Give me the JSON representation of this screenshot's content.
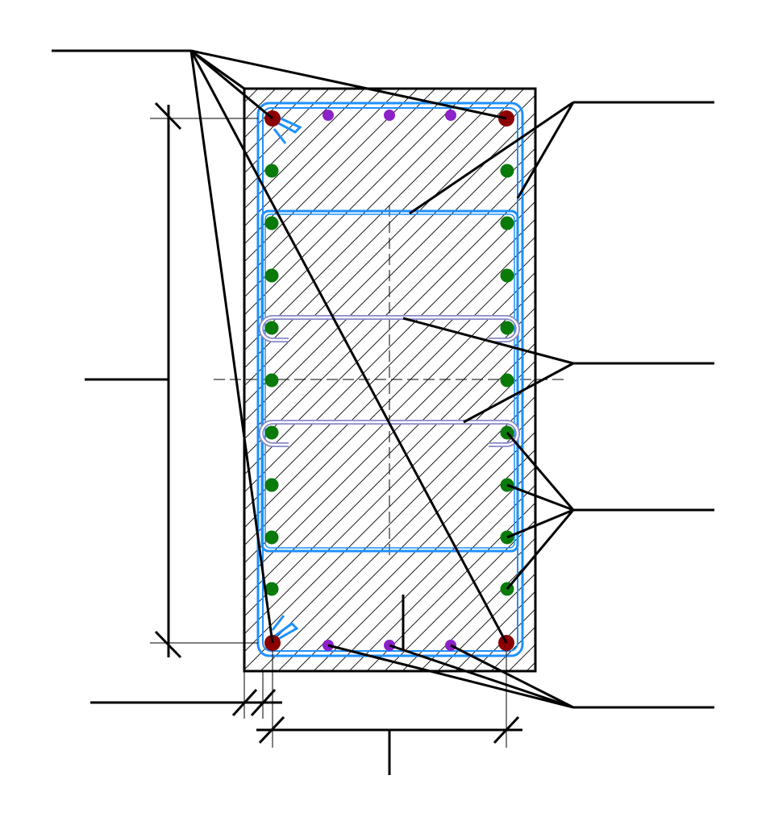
{
  "drawing": {
    "kind": "reinforced concrete column cross-section",
    "labels": [],
    "colors": {
      "outline": "#000000",
      "hatch": "#000000",
      "stirrup": "#1e90ff",
      "crosstie": "#8888c8",
      "corner_bar": "#8b0000",
      "side_bar": "#0a7a0a",
      "face_bar": "#8b22c8",
      "leader": "#000000",
      "dimension": "#000000",
      "axis": "#000000"
    },
    "bar_groups": [
      {
        "name": "corner-bars",
        "count": 4,
        "color_key": "corner_bar"
      },
      {
        "name": "side-bars",
        "count": 18,
        "color_key": "side_bar"
      },
      {
        "name": "face-bars",
        "count": 6,
        "color_key": "face_bar"
      }
    ],
    "stirrups": {
      "outer_hoops": 1,
      "inner_hoops": 1,
      "crossties": 2
    }
  }
}
